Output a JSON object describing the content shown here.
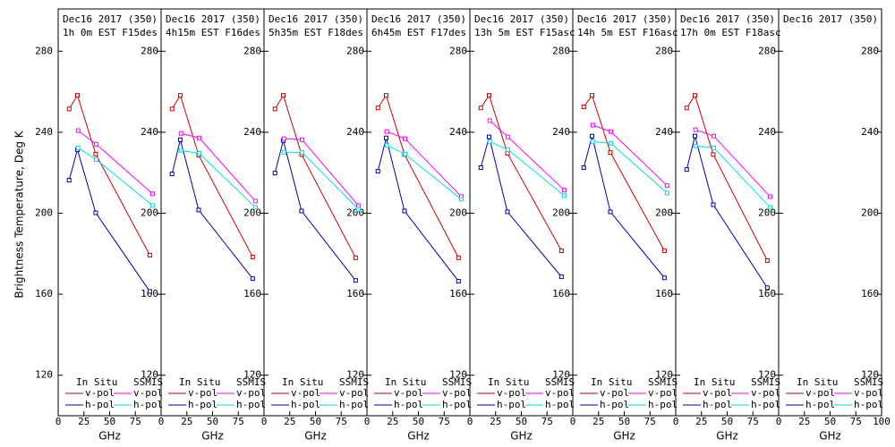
{
  "chart_data": [
    {
      "type": "line",
      "title": "Dec16 2017 (350)",
      "subtitle": "1h 0m EST F15des",
      "y_label": "Brightness Temperature, Deg K",
      "x_label": "GHz",
      "xlim": [
        0,
        100
      ],
      "xticks": [
        0,
        25,
        50,
        75
      ],
      "ylim": [
        100,
        300
      ],
      "yticks": [
        120,
        160,
        200,
        240,
        280
      ],
      "legend_titles": [
        "In Situ",
        "SSMIS"
      ],
      "series": [
        {
          "name": "v-pol",
          "color": "#cc0000",
          "x": [
            10.65,
            18.7,
            36.5,
            89
          ],
          "values": [
            251.5,
            258.2,
            229.2,
            179.3
          ]
        },
        {
          "name": "h-pol",
          "color": "#0000aa",
          "x": [
            10.65,
            18.7,
            36.5,
            89
          ],
          "values": [
            216.3,
            231.4,
            200.2,
            161.4
          ]
        },
        {
          "name": "v-pol",
          "color": "#ff00ff",
          "x": [
            19.35,
            37,
            91.655
          ],
          "values": [
            240.8,
            234.1,
            209.6
          ]
        },
        {
          "name": "h-pol",
          "color": "#00dddd",
          "x": [
            19.35,
            37,
            91.655
          ],
          "values": [
            232.3,
            226.5,
            203.8
          ]
        }
      ]
    },
    {
      "type": "line",
      "title": "Dec16 2017 (350)",
      "subtitle": "4h15m EST F16des",
      "x_label": "GHz",
      "xlim": [
        0,
        100
      ],
      "xticks": [
        0,
        25,
        50,
        75
      ],
      "ylim": [
        100,
        300
      ],
      "yticks": [
        120,
        160,
        200,
        240,
        280
      ],
      "legend_titles": [
        "In Situ",
        "SSMIS"
      ],
      "series": [
        {
          "name": "v-pol",
          "color": "#cc0000",
          "x": [
            10.65,
            18.7,
            36.5,
            89
          ],
          "values": [
            251.5,
            258.2,
            228.7,
            178.4
          ]
        },
        {
          "name": "h-pol",
          "color": "#0000aa",
          "x": [
            10.65,
            18.7,
            36.5,
            89
          ],
          "values": [
            219.4,
            236.3,
            201.6,
            167.7
          ]
        },
        {
          "name": "v-pol",
          "color": "#ff00ff",
          "x": [
            19.35,
            37,
            91.655
          ],
          "values": [
            239.4,
            237.2,
            206
          ]
        },
        {
          "name": "h-pol",
          "color": "#00dddd",
          "x": [
            19.35,
            37,
            91.655
          ],
          "values": [
            231,
            229.6,
            202.9
          ]
        }
      ]
    },
    {
      "type": "line",
      "title": "Dec16 2017 (350)",
      "subtitle": "5h35m EST F18des",
      "x_label": "GHz",
      "xlim": [
        0,
        100
      ],
      "xticks": [
        0,
        25,
        50,
        75
      ],
      "ylim": [
        100,
        300
      ],
      "yticks": [
        120,
        160,
        200,
        240,
        280
      ],
      "legend_titles": [
        "In Situ",
        "SSMIS"
      ],
      "series": [
        {
          "name": "v-pol",
          "color": "#cc0000",
          "x": [
            10.65,
            18.7,
            36.5,
            89
          ],
          "values": [
            251.5,
            258.2,
            229,
            178
          ]
        },
        {
          "name": "h-pol",
          "color": "#0000aa",
          "x": [
            10.65,
            18.7,
            36.5,
            89
          ],
          "values": [
            219.8,
            235.9,
            201.1,
            166.8
          ]
        },
        {
          "name": "v-pol",
          "color": "#ff00ff",
          "x": [
            19.35,
            37,
            91.655
          ],
          "values": [
            236.8,
            236.3,
            203.8
          ]
        },
        {
          "name": "h-pol",
          "color": "#00dddd",
          "x": [
            19.35,
            37,
            91.655
          ],
          "values": [
            230.1,
            230.1,
            202
          ]
        }
      ]
    },
    {
      "type": "line",
      "title": "Dec16 2017 (350)",
      "subtitle": "6h45m EST F17des",
      "x_label": "GHz",
      "xlim": [
        0,
        100
      ],
      "xticks": [
        0,
        25,
        50,
        75
      ],
      "ylim": [
        100,
        300
      ],
      "yticks": [
        120,
        160,
        200,
        240,
        280
      ],
      "legend_titles": [
        "In Situ",
        "SSMIS"
      ],
      "series": [
        {
          "name": "v-pol",
          "color": "#cc0000",
          "x": [
            10.65,
            18.7,
            36.5,
            89
          ],
          "values": [
            252,
            258.2,
            229,
            178
          ]
        },
        {
          "name": "h-pol",
          "color": "#0000aa",
          "x": [
            10.65,
            18.7,
            36.5,
            89
          ],
          "values": [
            220.7,
            237.2,
            201.1,
            166.4
          ]
        },
        {
          "name": "v-pol",
          "color": "#ff00ff",
          "x": [
            19.35,
            37,
            91.655
          ],
          "values": [
            240.3,
            236.8,
            208.2
          ]
        },
        {
          "name": "h-pol",
          "color": "#00dddd",
          "x": [
            19.35,
            37,
            91.655
          ],
          "values": [
            233.6,
            229.2,
            206.9
          ]
        }
      ]
    },
    {
      "type": "line",
      "title": "Dec16 2017 (350)",
      "subtitle": "13h 5m EST F15asc",
      "x_label": "GHz",
      "xlim": [
        0,
        100
      ],
      "xticks": [
        0,
        25,
        50,
        75
      ],
      "ylim": [
        100,
        300
      ],
      "yticks": [
        120,
        160,
        200,
        240,
        280
      ],
      "legend_titles": [
        "In Situ",
        "SSMIS"
      ],
      "series": [
        {
          "name": "v-pol",
          "color": "#cc0000",
          "x": [
            10.65,
            18.7,
            36.5,
            89
          ],
          "values": [
            252,
            258.2,
            229.6,
            181.5
          ]
        },
        {
          "name": "h-pol",
          "color": "#0000aa",
          "x": [
            10.65,
            18.7,
            36.5,
            89
          ],
          "values": [
            222.5,
            237.7,
            200.7,
            168.6
          ]
        },
        {
          "name": "v-pol",
          "color": "#ff00ff",
          "x": [
            19.35,
            37,
            91.655
          ],
          "values": [
            245.7,
            237.7,
            211.4
          ]
        },
        {
          "name": "h-pol",
          "color": "#00dddd",
          "x": [
            19.35,
            37,
            91.655
          ],
          "values": [
            235.4,
            231.4,
            208.7
          ]
        }
      ]
    },
    {
      "type": "line",
      "title": "Dec16 2017 (350)",
      "subtitle": "14h 5m EST F16asc",
      "x_label": "GHz",
      "xlim": [
        0,
        100
      ],
      "xticks": [
        0,
        25,
        50,
        75
      ],
      "ylim": [
        100,
        300
      ],
      "yticks": [
        120,
        160,
        200,
        240,
        280
      ],
      "legend_titles": [
        "In Situ",
        "SSMIS"
      ],
      "series": [
        {
          "name": "v-pol",
          "color": "#cc0000",
          "x": [
            10.65,
            18.7,
            36.5,
            89
          ],
          "values": [
            252.5,
            258.2,
            230,
            181.5
          ]
        },
        {
          "name": "h-pol",
          "color": "#0000aa",
          "x": [
            10.65,
            18.7,
            36.5,
            89
          ],
          "values": [
            222.5,
            238.1,
            200.7,
            168.1
          ]
        },
        {
          "name": "v-pol",
          "color": "#ff00ff",
          "x": [
            19.35,
            37,
            91.655
          ],
          "values": [
            243.5,
            240.3,
            213.6
          ]
        },
        {
          "name": "h-pol",
          "color": "#00dddd",
          "x": [
            19.35,
            37,
            91.655
          ],
          "values": [
            235.4,
            234.5,
            210
          ]
        }
      ]
    },
    {
      "type": "line",
      "title": "Dec16 2017 (350)",
      "subtitle": "17h 0m EST F18asc",
      "x_label": "GHz",
      "xlim": [
        0,
        100
      ],
      "xticks": [
        0,
        25,
        50,
        75
      ],
      "ylim": [
        100,
        300
      ],
      "yticks": [
        120,
        160,
        200,
        240,
        280
      ],
      "legend_titles": [
        "In Situ",
        "SSMIS"
      ],
      "series": [
        {
          "name": "v-pol",
          "color": "#cc0000",
          "x": [
            10.65,
            18.7,
            36.5,
            89
          ],
          "values": [
            252,
            258.2,
            229,
            176.6
          ]
        },
        {
          "name": "h-pol",
          "color": "#0000aa",
          "x": [
            10.65,
            18.7,
            36.5,
            89
          ],
          "values": [
            221.6,
            238.1,
            204.2,
            163.2
          ]
        },
        {
          "name": "v-pol",
          "color": "#ff00ff",
          "x": [
            19.35,
            37,
            91.655
          ],
          "values": [
            241.2,
            238.1,
            208.2
          ]
        },
        {
          "name": "h-pol",
          "color": "#00dddd",
          "x": [
            19.35,
            37,
            91.655
          ],
          "values": [
            233.2,
            232.3,
            202.9
          ]
        }
      ]
    },
    {
      "type": "line",
      "title": "Dec16 2017 (350)",
      "x_label": "GHz",
      "xlim": [
        0,
        100
      ],
      "xticks": [
        0,
        25,
        50,
        75,
        100
      ],
      "ylim": [
        100,
        300
      ],
      "yticks": [
        120,
        160,
        200,
        240,
        280
      ],
      "legend_titles": [
        "In Situ",
        "SSMIS"
      ],
      "series": [
        {
          "name": "v-pol",
          "color": "#cc0000",
          "x": [],
          "values": []
        },
        {
          "name": "h-pol",
          "color": "#0000aa",
          "x": [],
          "values": []
        },
        {
          "name": "v-pol",
          "color": "#ff00ff",
          "x": [],
          "values": []
        },
        {
          "name": "h-pol",
          "color": "#00dddd",
          "x": [],
          "values": []
        }
      ]
    }
  ]
}
